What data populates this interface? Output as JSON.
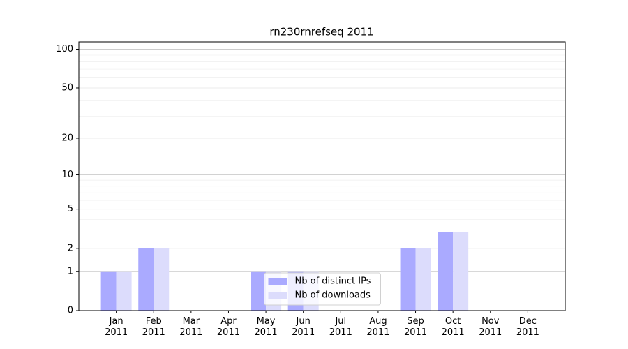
{
  "chart_data": {
    "type": "bar",
    "title": "rn230rnrefseq 2011",
    "categories": [
      "Jan\n2011",
      "Feb\n2011",
      "Mar\n2011",
      "Apr\n2011",
      "May\n2011",
      "Jun\n2011",
      "Jul\n2011",
      "Aug\n2011",
      "Sep\n2011",
      "Oct\n2011",
      "Nov\n2011",
      "Dec\n2011"
    ],
    "series": [
      {
        "name": "Nb of distinct IPs",
        "color": "#aaaaff",
        "values": [
          1,
          2,
          0,
          0,
          1,
          1,
          0,
          0,
          2,
          3,
          0,
          0
        ]
      },
      {
        "name": "Nb of downloads",
        "color": "#dcdcfc",
        "values": [
          1,
          2,
          0,
          0,
          1,
          1,
          0,
          0,
          2,
          3,
          0,
          0
        ]
      }
    ],
    "yscale": "log1p",
    "ylim": [
      0,
      114
    ],
    "yticks": [
      0,
      1,
      2,
      5,
      10,
      20,
      50,
      100
    ],
    "minor_yticks": [
      3,
      4,
      6,
      7,
      8,
      9,
      30,
      40,
      60,
      70,
      80,
      90
    ],
    "grid": true,
    "legend": "lower center"
  }
}
